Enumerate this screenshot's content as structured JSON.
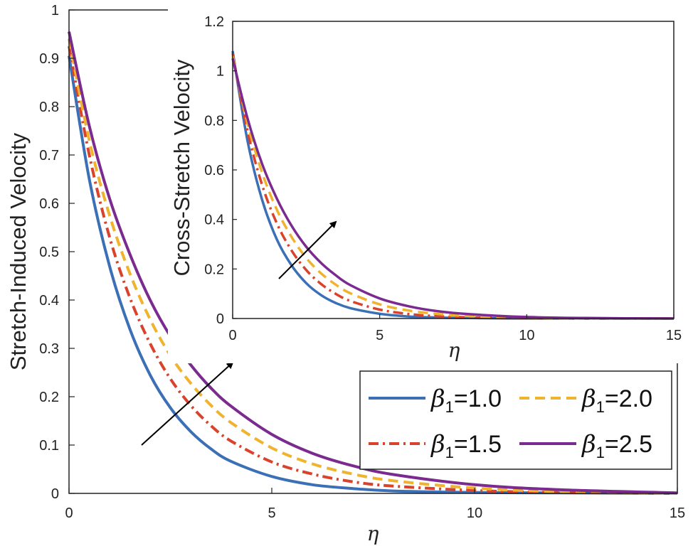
{
  "chart_data": [
    {
      "id": "main",
      "type": "line",
      "title": "",
      "xlabel": "η",
      "ylabel": "Stretch-Induced Velocity",
      "xlim": [
        0,
        15
      ],
      "ylim": [
        0,
        1
      ],
      "x_ticks": [
        0,
        5,
        10,
        15
      ],
      "y_ticks": [
        0,
        0.1,
        0.2,
        0.3,
        0.4,
        0.5,
        0.6,
        0.7,
        0.8,
        0.9,
        1
      ],
      "grid": false,
      "series": [
        {
          "name": "β1=1.0",
          "color": "#3b6fb6",
          "dash": "solid",
          "x": [
            0,
            0.5,
            1,
            1.5,
            2,
            2.5,
            3,
            3.5,
            4,
            5,
            6,
            7,
            8,
            10,
            12,
            15
          ],
          "y": [
            0.905,
            0.65,
            0.47,
            0.34,
            0.245,
            0.177,
            0.128,
            0.092,
            0.066,
            0.035,
            0.018,
            0.01,
            0.005,
            0.002,
            0.001,
            0.0
          ]
        },
        {
          "name": "β1=1.5",
          "color": "#d9432b",
          "dash": "dashdot",
          "x": [
            0,
            0.5,
            1,
            1.5,
            2,
            2.5,
            3,
            3.5,
            4,
            5,
            6,
            7,
            8,
            10,
            12,
            15
          ],
          "y": [
            0.925,
            0.7,
            0.53,
            0.405,
            0.31,
            0.237,
            0.182,
            0.14,
            0.108,
            0.065,
            0.04,
            0.024,
            0.015,
            0.006,
            0.002,
            0.0
          ]
        },
        {
          "name": "β1=2.0",
          "color": "#f0b32e",
          "dash": "dashed",
          "x": [
            0,
            0.5,
            1,
            1.5,
            2,
            2.5,
            3,
            3.5,
            4,
            5,
            6,
            7,
            8,
            10,
            12,
            15
          ],
          "y": [
            0.94,
            0.73,
            0.575,
            0.455,
            0.36,
            0.285,
            0.228,
            0.182,
            0.146,
            0.094,
            0.061,
            0.04,
            0.026,
            0.011,
            0.004,
            0.0
          ]
        },
        {
          "name": "β1=2.5",
          "color": "#7b2a8f",
          "dash": "solid",
          "x": [
            0,
            0.5,
            1,
            1.5,
            2,
            2.5,
            3,
            3.5,
            4,
            5,
            6,
            7,
            8,
            10,
            12,
            15
          ],
          "y": [
            0.955,
            0.76,
            0.61,
            0.495,
            0.4,
            0.325,
            0.266,
            0.218,
            0.18,
            0.122,
            0.083,
            0.057,
            0.039,
            0.018,
            0.008,
            0.001
          ]
        }
      ],
      "legend": {
        "placement": "lower-right",
        "items": [
          {
            "symbol": "β",
            "sub": "1",
            "value": "=1.0",
            "color": "#3b6fb6",
            "dash": "solid"
          },
          {
            "symbol": "β",
            "sub": "1",
            "value": "=2.0",
            "color": "#f0b32e",
            "dash": "dashed"
          },
          {
            "symbol": "β",
            "sub": "1",
            "value": "=1.5",
            "color": "#d9432b",
            "dash": "dashdot"
          },
          {
            "symbol": "β",
            "sub": "1",
            "value": "=2.5",
            "color": "#7b2a8f",
            "dash": "solid"
          }
        ]
      },
      "annotation": {
        "type": "arrow",
        "from": [
          1.8,
          0.1
        ],
        "to": [
          4.0,
          0.27
        ],
        "meaning": "increasing β1"
      }
    },
    {
      "id": "inset",
      "type": "line",
      "title": "",
      "xlabel": "η",
      "ylabel": "Cross-Stretch Velocity",
      "xlim": [
        0,
        15
      ],
      "ylim": [
        0,
        1.2
      ],
      "x_ticks": [
        0,
        5,
        10,
        15
      ],
      "y_ticks": [
        0,
        0.2,
        0.4,
        0.6,
        0.8,
        1,
        1.2
      ],
      "grid": false,
      "series": [
        {
          "name": "β1=1.0",
          "color": "#3b6fb6",
          "dash": "solid",
          "x": [
            0,
            0.5,
            1,
            1.5,
            2,
            2.5,
            3,
            3.5,
            4,
            5,
            6,
            7,
            8,
            10,
            12,
            15
          ],
          "y": [
            1.08,
            0.72,
            0.48,
            0.32,
            0.215,
            0.143,
            0.095,
            0.063,
            0.042,
            0.019,
            0.008,
            0.004,
            0.002,
            0.0,
            0.0,
            0.0
          ]
        },
        {
          "name": "β1=1.5",
          "color": "#d9432b",
          "dash": "dashdot",
          "x": [
            0,
            0.5,
            1,
            1.5,
            2,
            2.5,
            3,
            3.5,
            4,
            5,
            6,
            7,
            8,
            10,
            12,
            15
          ],
          "y": [
            1.07,
            0.76,
            0.54,
            0.385,
            0.275,
            0.196,
            0.14,
            0.1,
            0.071,
            0.036,
            0.018,
            0.009,
            0.005,
            0.001,
            0.0,
            0.0
          ]
        },
        {
          "name": "β1=2.0",
          "color": "#f0b32e",
          "dash": "dashed",
          "x": [
            0,
            0.5,
            1,
            1.5,
            2,
            2.5,
            3,
            3.5,
            4,
            5,
            6,
            7,
            8,
            10,
            12,
            15
          ],
          "y": [
            1.06,
            0.79,
            0.59,
            0.44,
            0.33,
            0.245,
            0.183,
            0.137,
            0.102,
            0.057,
            0.032,
            0.018,
            0.01,
            0.003,
            0.001,
            0.0
          ]
        },
        {
          "name": "β1=2.5",
          "color": "#7b2a8f",
          "dash": "solid",
          "x": [
            0,
            0.5,
            1,
            1.5,
            2,
            2.5,
            3,
            3.5,
            4,
            5,
            6,
            7,
            8,
            10,
            12,
            15
          ],
          "y": [
            1.05,
            0.81,
            0.625,
            0.485,
            0.375,
            0.29,
            0.225,
            0.175,
            0.135,
            0.081,
            0.049,
            0.029,
            0.018,
            0.006,
            0.002,
            0.0
          ]
        }
      ],
      "annotation": {
        "type": "arrow",
        "from": [
          1.6,
          0.16
        ],
        "to": [
          3.5,
          0.4
        ],
        "meaning": "increasing β1"
      }
    }
  ]
}
